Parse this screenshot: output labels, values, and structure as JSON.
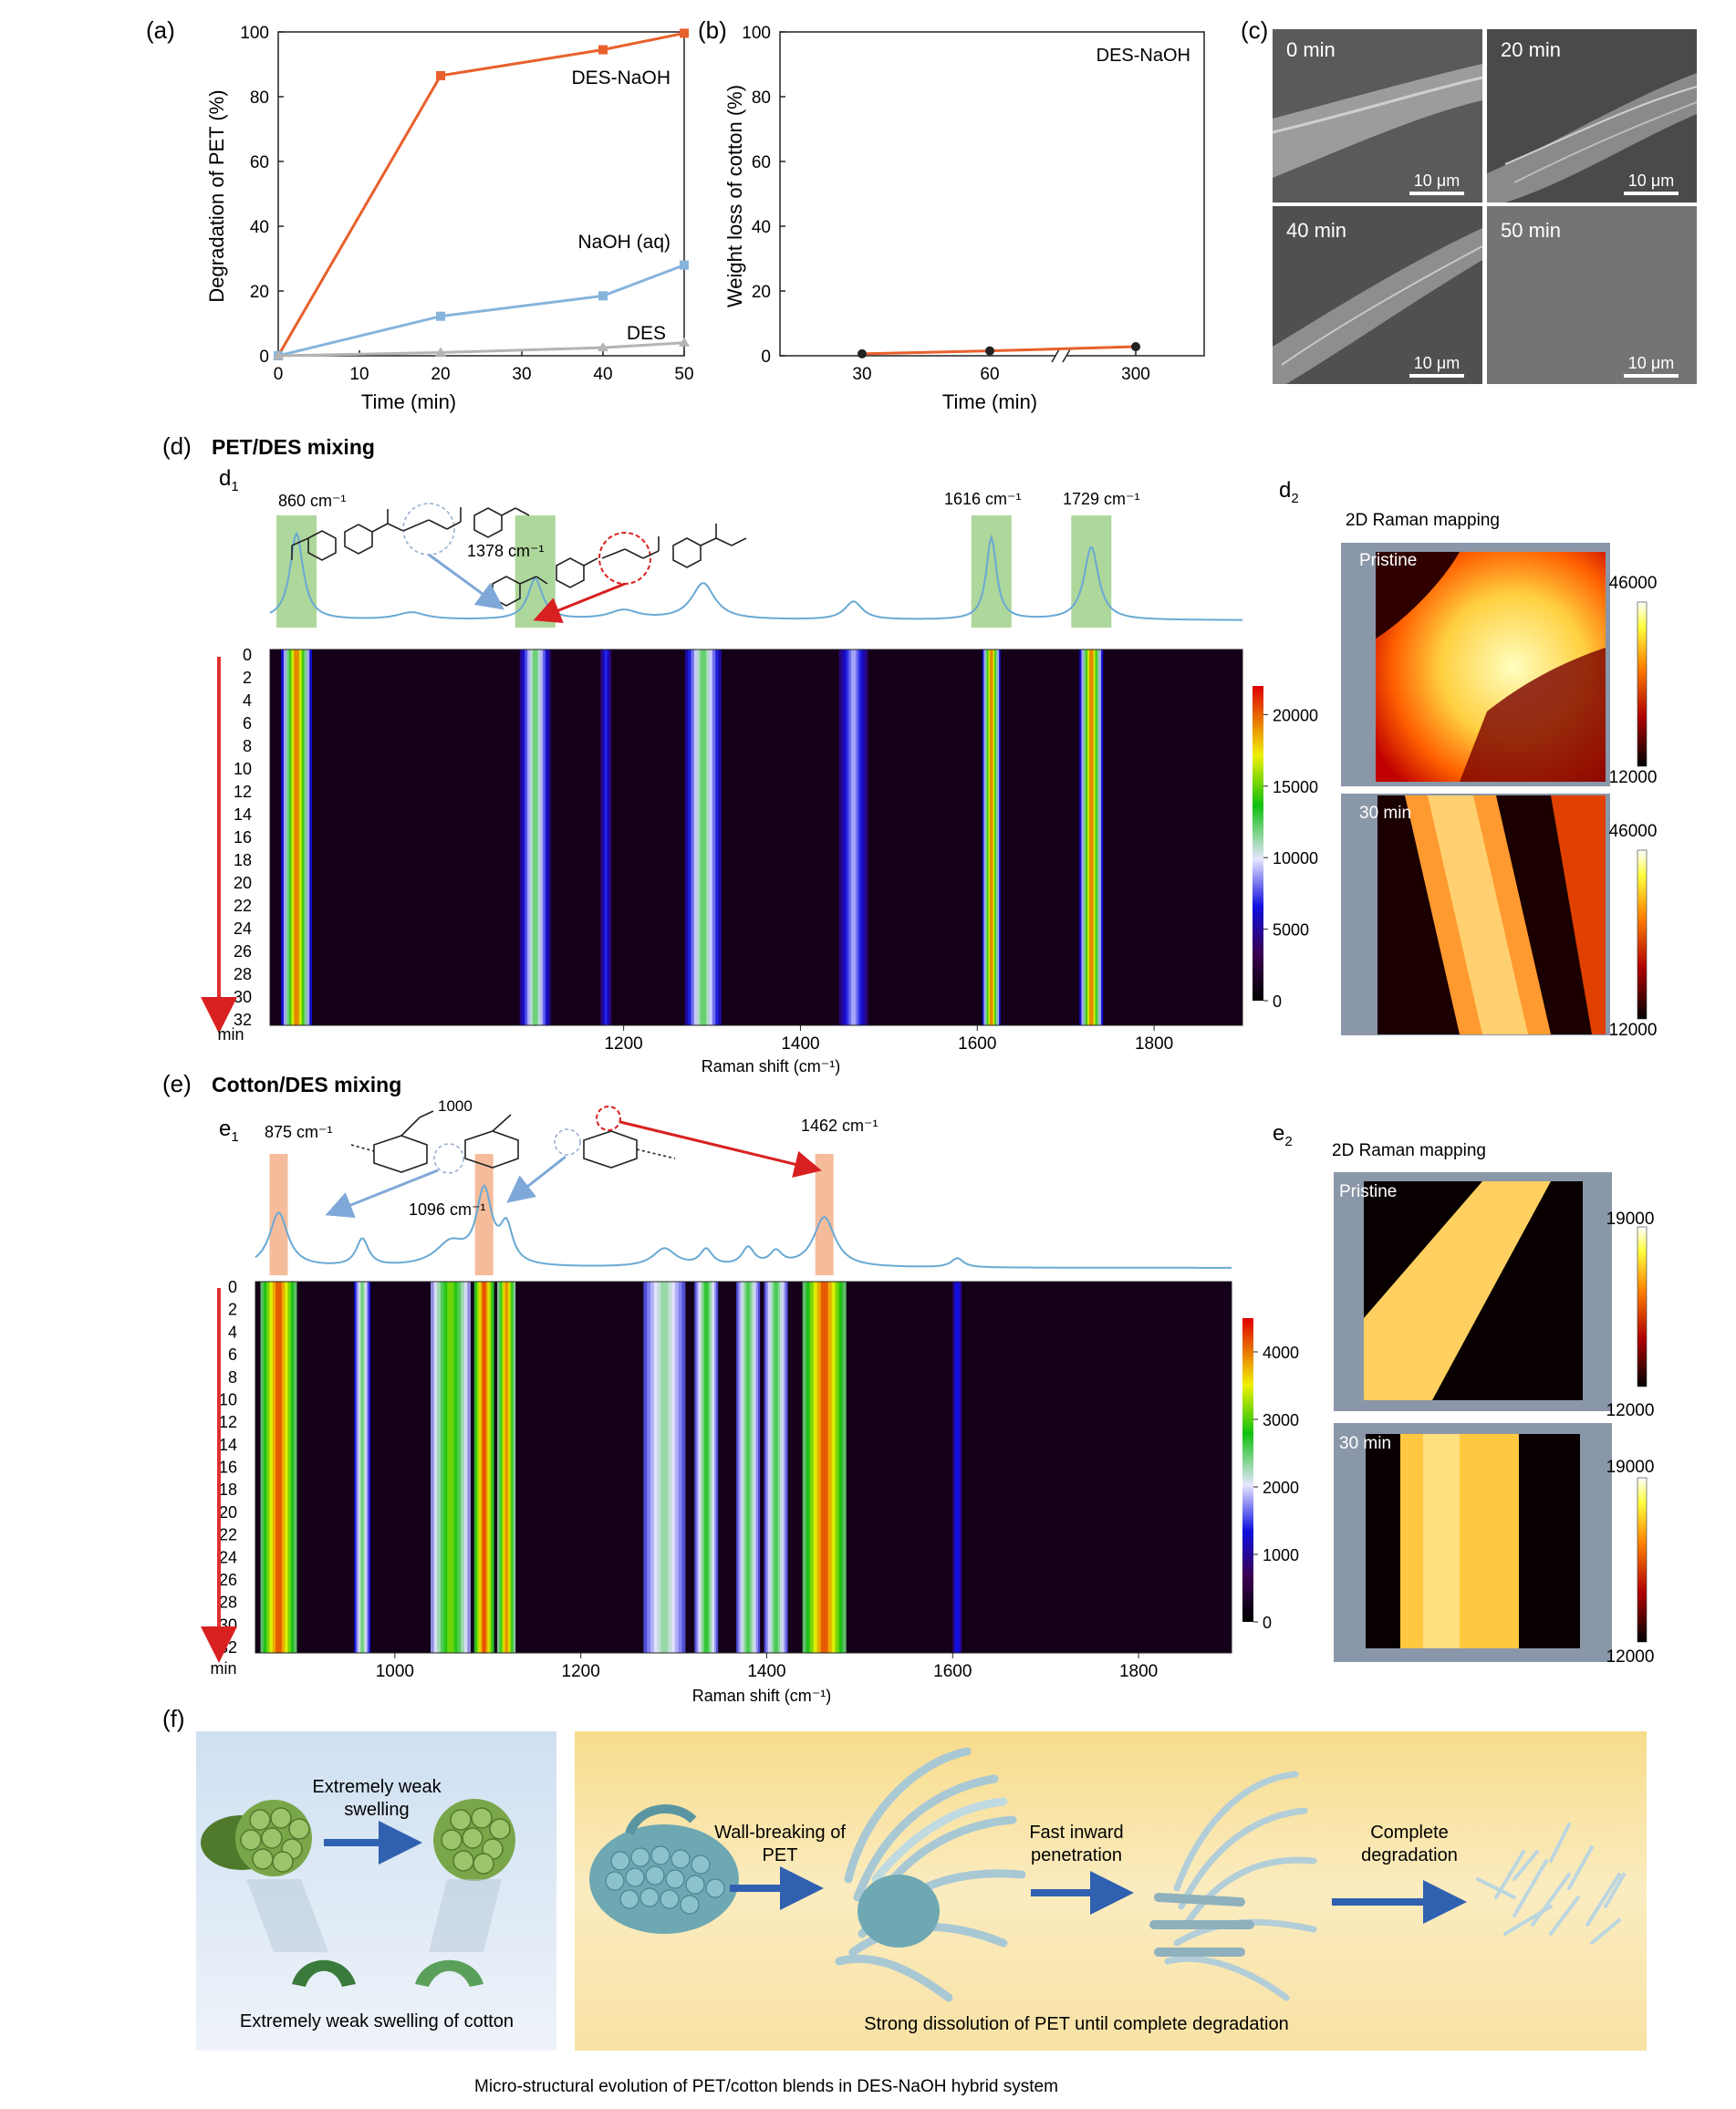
{
  "panel_labels": {
    "a": "(a)",
    "b": "(b)",
    "c": "(c)",
    "d": "(d)",
    "e": "(e)",
    "f": "(f)",
    "d1_main": "d",
    "d1_sub": "1",
    "d2_main": "d",
    "d2_sub": "2",
    "e1_main": "e",
    "e1_sub": "1",
    "e2_main": "e",
    "e2_sub": "2"
  },
  "colors": {
    "des_naoh": "#e8602c",
    "naoh_aq": "#86b4dc",
    "des": "#b4b4b4",
    "spectrum": "#6aa9d4",
    "pet_band": "#9fd08a",
    "cotton_band": "#f3b08a",
    "red_arrow": "#d92020",
    "blue_arrow": "#7fa8d8"
  },
  "chart_data": [
    {
      "id": "a",
      "type": "line",
      "xlabel": "Time (min)",
      "ylabel": "Degradation of PET (%)",
      "xlim": [
        0,
        50
      ],
      "ylim": [
        0,
        100
      ],
      "xticks": [
        0,
        10,
        20,
        30,
        40,
        50
      ],
      "yticks": [
        0,
        20,
        40,
        60,
        80,
        100
      ],
      "series": [
        {
          "name": "DES-NaOH",
          "x": [
            0,
            20,
            40,
            50
          ],
          "y": [
            0,
            86.5,
            94.5,
            99.6
          ]
        },
        {
          "name": "NaOH (aq)",
          "x": [
            0,
            20,
            40,
            50
          ],
          "y": [
            0,
            12.2,
            18.5,
            28
          ]
        },
        {
          "name": "DES",
          "x": [
            0,
            20,
            40,
            50
          ],
          "y": [
            0,
            1,
            2.5,
            4
          ]
        }
      ]
    },
    {
      "id": "b",
      "type": "line",
      "xlabel": "Time (min)",
      "ylabel": "Weight loss of cotton (%)",
      "categories": [
        "30",
        "60",
        "300"
      ],
      "ylim": [
        0,
        100
      ],
      "yticks": [
        0,
        20,
        40,
        60,
        80,
        100
      ],
      "legend": "DES-NaOH",
      "axis_break": "between 60 and 300",
      "series": [
        {
          "name": "DES-NaOH",
          "x": [
            30,
            60,
            300
          ],
          "y": [
            0.6,
            1.5,
            2.8
          ]
        }
      ]
    },
    {
      "id": "d1",
      "type": "heatmap",
      "xlabel": "Raman shift (cm⁻¹)",
      "xlim": [
        800,
        1900
      ],
      "xticks": [
        1200,
        1400,
        1600,
        1800
      ],
      "ylabel": "min",
      "yticks": [
        0,
        2,
        4,
        6,
        8,
        10,
        12,
        14,
        16,
        18,
        20,
        22,
        24,
        26,
        28,
        30,
        32
      ],
      "colorbar": {
        "min": 0,
        "max": 22000,
        "ticks": [
          0,
          5000,
          10000,
          15000,
          20000
        ]
      },
      "peaks": [
        860,
        1100,
        1180,
        1290,
        1460,
        1616,
        1729
      ],
      "labeled_peaks": [
        {
          "shift": 860,
          "label": "860 cm⁻¹"
        },
        {
          "shift": 1378,
          "label": "1378 cm⁻¹"
        },
        {
          "shift": 1616,
          "label": "1616 cm⁻¹"
        },
        {
          "shift": 1729,
          "label": "1729 cm⁻¹"
        }
      ]
    },
    {
      "id": "e1",
      "type": "heatmap",
      "xlabel": "Raman shift (cm⁻¹)",
      "xlim": [
        850,
        1900
      ],
      "xticks": [
        1000,
        1200,
        1400,
        1600,
        1800
      ],
      "ylabel": "min",
      "yticks": [
        0,
        2,
        4,
        6,
        8,
        10,
        12,
        14,
        16,
        18,
        20,
        22,
        24,
        26,
        28,
        30,
        32
      ],
      "colorbar": {
        "min": 0,
        "max": 4500,
        "ticks": [
          0,
          1000,
          2000,
          3000,
          4000
        ]
      },
      "peaks": [
        875,
        965,
        1060,
        1096,
        1120,
        1290,
        1335,
        1380,
        1410,
        1462,
        1605
      ],
      "labeled_peaks": [
        {
          "shift": 875,
          "label": "875 cm⁻¹"
        },
        {
          "shift": 1096,
          "label": "1096 cm⁻¹"
        },
        {
          "shift": 1462,
          "label": "1462 cm⁻¹"
        }
      ]
    }
  ],
  "c": {
    "tiles": [
      "0 min",
      "20 min",
      "40 min",
      "50 min"
    ],
    "scale": "10 μm"
  },
  "d": {
    "title": "PET/DES mixing",
    "peak1": "860 cm⁻¹",
    "peak2": "1378 cm⁻¹",
    "peak3": "1616 cm⁻¹",
    "peak4": "1729 cm⁻¹",
    "xlabel": "Raman shift (cm⁻¹)",
    "min_label": "min",
    "mapping_title": "2D Raman mapping",
    "map_top": "Pristine",
    "map_bottom": "30 min",
    "cb_max": "46000",
    "cb_min": "12000"
  },
  "e": {
    "title": "Cotton/DES mixing",
    "peak1": "875 cm⁻¹",
    "peak2": "1096 cm⁻¹",
    "peak3": "1462 cm⁻¹",
    "chem_label": "1000",
    "xlabel": "Raman shift (cm⁻¹)",
    "min_label": "min",
    "mapping_title": "2D Raman mapping",
    "map_top": "Pristine",
    "map_bottom": "30 min",
    "cb_max": "19000",
    "cb_min": "12000"
  },
  "f": {
    "cotton_step_line1": "Extremely weak",
    "cotton_step_line2": "swelling",
    "cotton_caption": "Extremely weak swelling of cotton",
    "step1_line1": "Wall-breaking of",
    "step1_line2": "PET",
    "step2_line1": "Fast inward",
    "step2_line2": "penetration",
    "step3_line1": "Complete",
    "step3_line2": "degradation",
    "pet_caption": "Strong dissolution of PET until complete degradation",
    "figure_caption": "Micro-structural evolution of PET/cotton blends in DES-NaOH hybrid system"
  }
}
